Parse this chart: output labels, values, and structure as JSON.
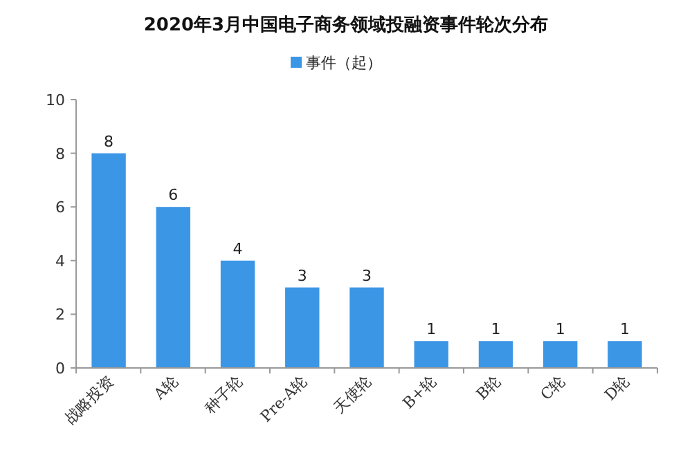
{
  "chart_data": {
    "type": "bar",
    "title": "2020年3月中国电子商务领域投融资事件轮次分布",
    "categories": [
      "战略投资",
      "A轮",
      "种子轮",
      "Pre-A轮",
      "天使轮",
      "B+轮",
      "B轮",
      "C轮",
      "D轮"
    ],
    "series": [
      {
        "name": "事件（起）",
        "color": "#3c96e6",
        "values": [
          8,
          6,
          4,
          3,
          3,
          1,
          1,
          1,
          1
        ]
      }
    ],
    "ylim": [
      0,
      10
    ],
    "yticks": [
      0,
      2,
      4,
      6,
      8,
      10
    ],
    "data_labels": true,
    "legend": "top",
    "grid": false
  }
}
